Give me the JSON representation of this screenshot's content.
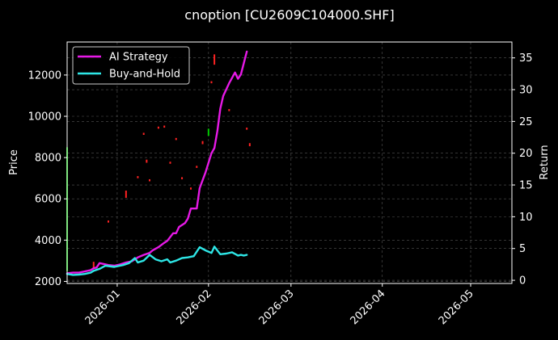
{
  "chart_data": {
    "type": "line",
    "title": "cnoption [CU2609C104000.SHF]",
    "ylabel": "Price",
    "y2label": "Return",
    "ylim": [
      1900,
      13600
    ],
    "y2lim": [
      -0.5,
      37.5
    ],
    "yticks": [
      2000,
      4000,
      6000,
      8000,
      10000,
      12000
    ],
    "ytick_labels": [
      "2000",
      "4000",
      "6000",
      "8000",
      "10000",
      "12000"
    ],
    "y2ticks": [
      0,
      5,
      10,
      15,
      20,
      25,
      30,
      35
    ],
    "y2tick_labels": [
      "0",
      "5",
      "10",
      "15",
      "20",
      "25",
      "30",
      "35"
    ],
    "xlim": [
      "2025-12-15",
      "2026-05-15"
    ],
    "xticks": [
      "2026-01-01",
      "2026-02-01",
      "2026-03-01",
      "2026-04-01",
      "2026-05-01"
    ],
    "xtick_labels": [
      "2026-01",
      "2026-02",
      "2026-03",
      "2026-04",
      "2026-05"
    ],
    "grid": true,
    "legend_position": "top-left",
    "series": [
      {
        "name": "AI Strategy",
        "color": "#e619e6",
        "axis": "return",
        "points": [
          [
            "2025-12-15",
            1.1
          ],
          [
            "2025-12-17",
            1.2
          ],
          [
            "2025-12-19",
            1.2
          ],
          [
            "2025-12-21",
            1.4
          ],
          [
            "2025-12-23",
            1.6
          ],
          [
            "2025-12-24",
            1.9
          ],
          [
            "2025-12-25",
            2.0
          ],
          [
            "2025-12-26",
            2.7
          ],
          [
            "2025-12-27",
            2.6
          ],
          [
            "2025-12-29",
            2.4
          ],
          [
            "2025-12-31",
            2.3
          ],
          [
            "2026-01-02",
            2.5
          ],
          [
            "2026-01-04",
            2.8
          ],
          [
            "2026-01-06",
            3.0
          ],
          [
            "2026-01-08",
            3.6
          ],
          [
            "2026-01-10",
            4.0
          ],
          [
            "2026-01-12",
            4.3
          ],
          [
            "2026-01-13",
            4.7
          ],
          [
            "2026-01-15",
            5.2
          ],
          [
            "2026-01-17",
            5.9
          ],
          [
            "2026-01-18",
            6.2
          ],
          [
            "2026-01-20",
            7.4
          ],
          [
            "2026-01-21",
            7.4
          ],
          [
            "2026-01-22",
            8.4
          ],
          [
            "2026-01-24",
            9.0
          ],
          [
            "2026-01-25",
            9.7
          ],
          [
            "2026-01-26",
            11.3
          ],
          [
            "2026-01-28",
            11.3
          ],
          [
            "2026-01-29",
            14.5
          ],
          [
            "2026-01-31",
            17.0
          ],
          [
            "2026-02-02",
            20.0
          ],
          [
            "2026-02-03",
            20.8
          ],
          [
            "2026-02-04",
            23.5
          ],
          [
            "2026-02-05",
            27.0
          ],
          [
            "2026-02-06",
            29.0
          ],
          [
            "2026-02-08",
            31.0
          ],
          [
            "2026-02-10",
            32.7
          ],
          [
            "2026-02-11",
            31.7
          ],
          [
            "2026-02-12",
            32.4
          ],
          [
            "2026-02-14",
            36.0
          ]
        ]
      },
      {
        "name": "Buy-and-Hold",
        "color": "#2ee6e6",
        "axis": "return",
        "points": [
          [
            "2025-12-15",
            1.0
          ],
          [
            "2025-12-17",
            0.85
          ],
          [
            "2025-12-19",
            0.9
          ],
          [
            "2025-12-21",
            1.0
          ],
          [
            "2025-12-23",
            1.2
          ],
          [
            "2025-12-24",
            1.5
          ],
          [
            "2025-12-26",
            1.8
          ],
          [
            "2025-12-28",
            2.3
          ],
          [
            "2025-12-31",
            2.1
          ],
          [
            "2026-01-03",
            2.4
          ],
          [
            "2026-01-05",
            2.7
          ],
          [
            "2026-01-07",
            3.5
          ],
          [
            "2026-01-08",
            2.8
          ],
          [
            "2026-01-10",
            3.1
          ],
          [
            "2026-01-12",
            4.0
          ],
          [
            "2026-01-14",
            3.3
          ],
          [
            "2026-01-16",
            3.0
          ],
          [
            "2026-01-18",
            3.3
          ],
          [
            "2026-01-19",
            2.8
          ],
          [
            "2026-01-21",
            3.1
          ],
          [
            "2026-01-23",
            3.5
          ],
          [
            "2026-01-25",
            3.6
          ],
          [
            "2026-01-27",
            3.8
          ],
          [
            "2026-01-29",
            5.2
          ],
          [
            "2026-01-31",
            4.7
          ],
          [
            "2026-02-02",
            4.3
          ],
          [
            "2026-02-03",
            5.3
          ],
          [
            "2026-02-05",
            4.1
          ],
          [
            "2026-02-07",
            4.2
          ],
          [
            "2026-02-09",
            4.4
          ],
          [
            "2026-02-11",
            3.9
          ],
          [
            "2026-02-12",
            4.0
          ],
          [
            "2026-02-13",
            3.9
          ],
          [
            "2026-02-14",
            4.0
          ]
        ]
      }
    ],
    "candles": {
      "axis": "price",
      "items": [
        {
          "date": "2025-12-15",
          "low": 2500,
          "high": 8500,
          "color": "#00cc00"
        },
        {
          "date": "2025-12-24",
          "low": 2650,
          "high": 2950,
          "color": "#ff2222"
        },
        {
          "date": "2025-12-29",
          "low": 4850,
          "high": 4950,
          "color": "#ff2222"
        },
        {
          "date": "2026-01-04",
          "low": 6050,
          "high": 6400,
          "color": "#ff2222"
        },
        {
          "date": "2026-01-08",
          "low": 7000,
          "high": 7100,
          "color": "#ff2222"
        },
        {
          "date": "2026-01-10",
          "low": 9100,
          "high": 9200,
          "color": "#ff2222"
        },
        {
          "date": "2026-01-11",
          "low": 7750,
          "high": 7900,
          "color": "#ff2222"
        },
        {
          "date": "2026-01-12",
          "low": 6850,
          "high": 6950,
          "color": "#ff2222"
        },
        {
          "date": "2026-01-15",
          "low": 9400,
          "high": 9500,
          "color": "#ff2222"
        },
        {
          "date": "2026-01-17",
          "low": 9450,
          "high": 9550,
          "color": "#ff2222"
        },
        {
          "date": "2026-01-19",
          "low": 7700,
          "high": 7800,
          "color": "#ff2222"
        },
        {
          "date": "2026-01-21",
          "low": 8850,
          "high": 8950,
          "color": "#ff2222"
        },
        {
          "date": "2026-01-23",
          "low": 6950,
          "high": 7050,
          "color": "#ff2222"
        },
        {
          "date": "2026-01-26",
          "low": 6450,
          "high": 6550,
          "color": "#ff2222"
        },
        {
          "date": "2026-01-28",
          "low": 7500,
          "high": 7600,
          "color": "#ff2222"
        },
        {
          "date": "2026-01-30",
          "low": 8650,
          "high": 8800,
          "color": "#ff2222"
        },
        {
          "date": "2026-02-01",
          "low": 9050,
          "high": 9400,
          "color": "#00cc00"
        },
        {
          "date": "2026-02-02",
          "low": 11600,
          "high": 11700,
          "color": "#ff2222"
        },
        {
          "date": "2026-02-03",
          "low": 12500,
          "high": 13000,
          "color": "#ff2222"
        },
        {
          "date": "2026-02-08",
          "low": 10250,
          "high": 10350,
          "color": "#ff2222"
        },
        {
          "date": "2026-02-14",
          "low": 9350,
          "high": 9450,
          "color": "#ff2222"
        },
        {
          "date": "2026-02-15",
          "low": 8550,
          "high": 8700,
          "color": "#ff2222"
        }
      ]
    }
  }
}
